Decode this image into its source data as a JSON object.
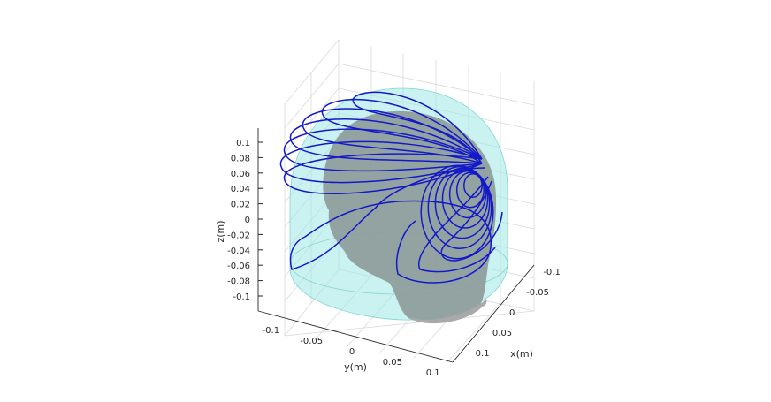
{
  "chart_data": {
    "type": "3d-surface-with-contours",
    "xlabel": "x(m)",
    "ylabel": "y(m)",
    "zlabel": "z(m)",
    "x_ticks": [
      "-0.1",
      "-0.05",
      "0",
      "0.05",
      "0.1"
    ],
    "y_ticks": [
      "-0.1",
      "-0.05",
      "0",
      "0.05",
      "0.1"
    ],
    "z_ticks": [
      "0.1",
      "0.08",
      "0.06",
      "0.04",
      "0.02",
      "0",
      "-0.02",
      "-0.04",
      "-0.06",
      "-0.08",
      "-0.1"
    ],
    "xlim": [
      -0.12,
      0.12
    ],
    "ylim": [
      -0.12,
      0.12
    ],
    "zlim": [
      -0.12,
      0.12
    ],
    "grid": true,
    "objects": [
      {
        "name": "head",
        "color": "#8e9c9b"
      },
      {
        "name": "cylinder-dome shell",
        "color": "#9fe8e4"
      },
      {
        "name": "coil winding",
        "color": "#1419c8"
      }
    ]
  }
}
